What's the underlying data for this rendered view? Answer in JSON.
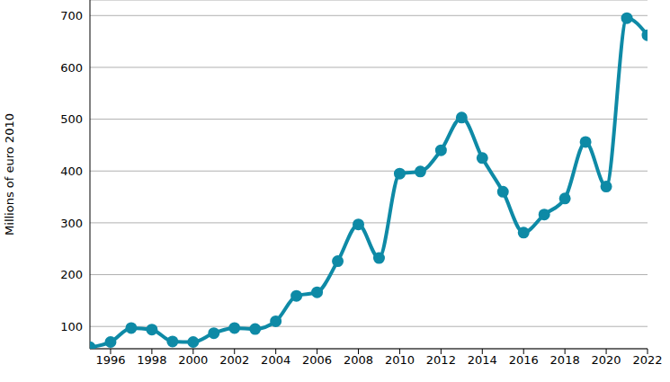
{
  "chart_data": {
    "type": "line",
    "y_label": "Millions of euro 2010",
    "x": [
      1995,
      1996,
      1997,
      1998,
      1999,
      2000,
      2001,
      2002,
      2003,
      2004,
      2005,
      2006,
      2007,
      2008,
      2009,
      2010,
      2011,
      2012,
      2013,
      2014,
      2015,
      2016,
      2017,
      2018,
      2019,
      2020,
      2021,
      2022
    ],
    "values": [
      60,
      70,
      97,
      94,
      71,
      70,
      87,
      97,
      95,
      110,
      159,
      166,
      226,
      297,
      232,
      395,
      399,
      440,
      503,
      425,
      360,
      281,
      316,
      347,
      456,
      370,
      695,
      662
    ],
    "color": "#0e8aa6",
    "marker": "circle",
    "xlim": [
      1995,
      2022
    ],
    "xticks": [
      1996,
      1998,
      2000,
      2002,
      2004,
      2006,
      2008,
      2010,
      2012,
      2014,
      2016,
      2018,
      2020,
      2022
    ],
    "ylim": [
      57,
      730
    ],
    "yticks": [
      100,
      200,
      300,
      400,
      500,
      600,
      700
    ],
    "grid": true
  }
}
